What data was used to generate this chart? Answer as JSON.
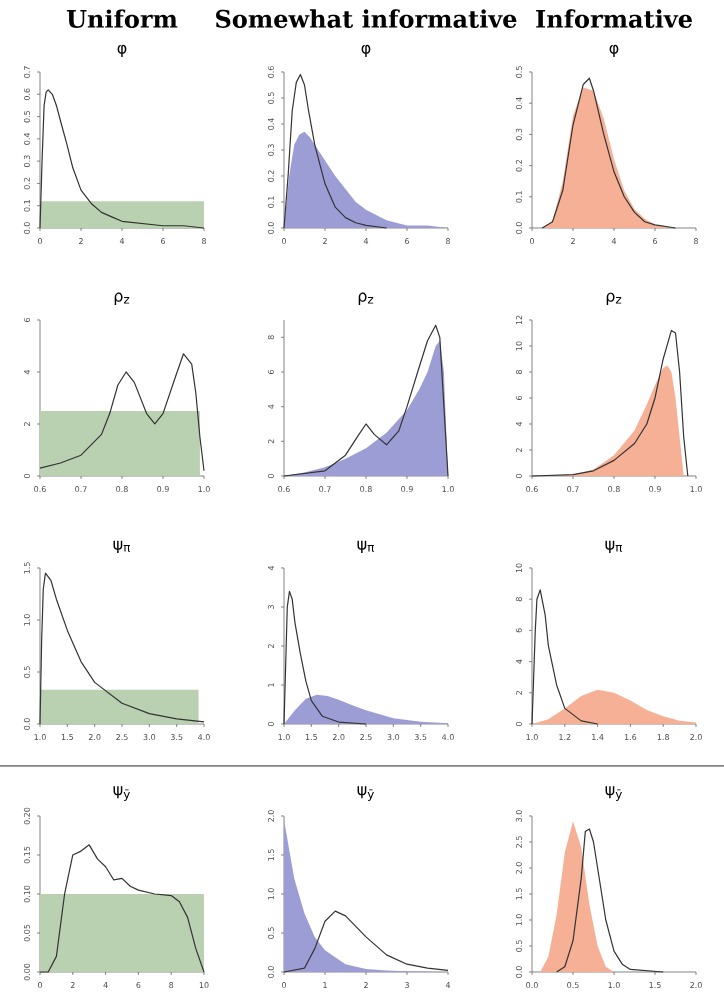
{
  "chart_data": [
    {
      "type": "area",
      "title": "Uniform",
      "subtitle": "φ",
      "xlim": [
        0,
        8
      ],
      "ylim": [
        0,
        0.7
      ],
      "xticks": [
        0,
        2,
        4,
        6,
        8
      ],
      "yticks": [
        {
          "value": 0,
          "label": "0.0"
        },
        0.1,
        0.2,
        0.3,
        0.4,
        0.5,
        0.6,
        0.7
      ],
      "series": [
        {
          "type": "area",
          "color": "#b9d0b1",
          "x": [
            0,
            1,
            2,
            3,
            4,
            5,
            6,
            7,
            8
          ],
          "values": [
            0.12,
            0.12,
            0.12,
            0.12,
            0.12,
            0.12,
            0.12,
            0.12,
            0.12
          ]
        },
        {
          "type": "line",
          "color": "#333333",
          "x": [
            0,
            0.1,
            0.2,
            0.3,
            0.4,
            0.6,
            0.8,
            1,
            1.3,
            1.6,
            2,
            2.5,
            3,
            3.5,
            4,
            5,
            6,
            7,
            8
          ],
          "values": [
            0,
            0.3,
            0.55,
            0.61,
            0.62,
            0.6,
            0.55,
            0.48,
            0.38,
            0.27,
            0.17,
            0.11,
            0.07,
            0.05,
            0.03,
            0.02,
            0.01,
            0.01,
            0
          ]
        }
      ]
    },
    {
      "type": "area",
      "title": "Somewhat informative",
      "subtitle": "φ",
      "xlim": [
        0,
        8
      ],
      "ylim": [
        0,
        0.6
      ],
      "xticks": [
        0,
        2,
        4,
        6,
        8
      ],
      "yticks": [
        {
          "value": 0,
          "label": "0.0"
        },
        0.1,
        0.2,
        0.3,
        0.4,
        0.5,
        0.6
      ],
      "series": [
        {
          "type": "area",
          "color": "#9d9dd6",
          "x": [
            0,
            0.25,
            0.5,
            0.75,
            1,
            1.25,
            1.5,
            2,
            2.5,
            3,
            3.5,
            4,
            5,
            6,
            7,
            8
          ],
          "values": [
            0,
            0.2,
            0.32,
            0.36,
            0.37,
            0.35,
            0.32,
            0.26,
            0.2,
            0.15,
            0.1,
            0.07,
            0.03,
            0.01,
            0.01,
            0
          ]
        },
        {
          "type": "line",
          "color": "#333333",
          "x": [
            0,
            0.2,
            0.4,
            0.6,
            0.8,
            1,
            1.2,
            1.5,
            2,
            2.5,
            3,
            3.5,
            4,
            5
          ],
          "values": [
            0,
            0.2,
            0.45,
            0.56,
            0.59,
            0.55,
            0.45,
            0.32,
            0.17,
            0.08,
            0.04,
            0.02,
            0.01,
            0
          ]
        }
      ]
    },
    {
      "type": "area",
      "title": "Informative",
      "subtitle": "φ",
      "xlim": [
        0,
        8
      ],
      "ylim": [
        0,
        0.5
      ],
      "xticks": [
        0,
        2,
        4,
        6,
        8
      ],
      "yticks": [
        {
          "value": 0,
          "label": "0.0"
        },
        0.1,
        0.2,
        0.3,
        0.4,
        0.5
      ],
      "series": [
        {
          "type": "area",
          "color": "#f6b096",
          "x": [
            0.5,
            1,
            1.5,
            2,
            2.5,
            3,
            3.5,
            4,
            4.5,
            5,
            5.5,
            6,
            7
          ],
          "values": [
            0,
            0.02,
            0.15,
            0.36,
            0.45,
            0.44,
            0.35,
            0.22,
            0.12,
            0.06,
            0.03,
            0.01,
            0
          ]
        },
        {
          "type": "line",
          "color": "#333333",
          "x": [
            0.5,
            1,
            1.5,
            2,
            2.5,
            2.8,
            3,
            3.5,
            4,
            4.5,
            5,
            5.5,
            6,
            7
          ],
          "values": [
            0,
            0.02,
            0.12,
            0.33,
            0.46,
            0.48,
            0.44,
            0.3,
            0.18,
            0.1,
            0.05,
            0.02,
            0.01,
            0
          ]
        }
      ]
    },
    {
      "type": "area",
      "title": "ρ$_{z}$",
      "xlim": [
        0.6,
        1.0
      ],
      "ylim": [
        0,
        6
      ],
      "xticks": [
        0.6,
        0.7,
        0.8,
        0.9,
        {
          "value": 1.0,
          "label": "1.0"
        }
      ],
      "yticks": [
        0,
        2,
        4,
        6
      ],
      "series": [
        {
          "type": "area",
          "color": "#b9d0b1",
          "x": [
            0.6,
            0.7,
            0.8,
            0.9,
            0.99
          ],
          "values": [
            2.5,
            2.5,
            2.5,
            2.5,
            2.5
          ]
        },
        {
          "type": "line",
          "color": "#333333",
          "x": [
            0.6,
            0.65,
            0.7,
            0.75,
            0.77,
            0.79,
            0.81,
            0.83,
            0.86,
            0.88,
            0.9,
            0.93,
            0.95,
            0.97,
            0.98,
            0.99,
            1.0
          ],
          "values": [
            0.3,
            0.5,
            0.8,
            1.6,
            2.4,
            3.5,
            4.0,
            3.6,
            2.4,
            2.0,
            2.4,
            3.8,
            4.7,
            4.3,
            3.2,
            1.5,
            0.2
          ]
        }
      ]
    },
    {
      "type": "area",
      "title": "ρ$_{z}$",
      "xlim": [
        0.6,
        1.0
      ],
      "ylim": [
        0,
        9
      ],
      "xticks": [
        0.6,
        0.7,
        0.8,
        0.9,
        {
          "value": 1.0,
          "label": "1.0"
        }
      ],
      "yticks": [
        0,
        2,
        4,
        6,
        8
      ],
      "series": [
        {
          "type": "area",
          "color": "#9d9dd6",
          "x": [
            0.6,
            0.65,
            0.7,
            0.75,
            0.8,
            0.85,
            0.9,
            0.93,
            0.95,
            0.97,
            0.98,
            0.99,
            1.0
          ],
          "values": [
            0,
            0.2,
            0.5,
            1.0,
            1.6,
            2.5,
            3.8,
            5,
            6,
            7.5,
            7.8,
            6,
            0
          ]
        },
        {
          "type": "line",
          "color": "#333333",
          "x": [
            0.6,
            0.7,
            0.75,
            0.78,
            0.8,
            0.82,
            0.85,
            0.88,
            0.9,
            0.93,
            0.95,
            0.97,
            0.98,
            0.99,
            1.0
          ],
          "values": [
            0,
            0.3,
            1.2,
            2.3,
            3.0,
            2.4,
            1.8,
            2.6,
            4.0,
            6.3,
            7.8,
            8.7,
            8,
            4,
            0
          ]
        }
      ]
    },
    {
      "type": "area",
      "title": "ρ$_{z}$",
      "xlim": [
        0.6,
        1.0
      ],
      "ylim": [
        0,
        12
      ],
      "xticks": [
        0.6,
        0.7,
        0.8,
        0.9,
        {
          "value": 1.0,
          "label": "1.0"
        }
      ],
      "yticks": [
        0,
        2,
        4,
        6,
        8,
        10,
        12
      ],
      "series": [
        {
          "type": "area",
          "color": "#f6b096",
          "x": [
            0.6,
            0.7,
            0.75,
            0.8,
            0.85,
            0.88,
            0.9,
            0.92,
            0.93,
            0.94,
            0.95,
            0.97
          ],
          "values": [
            0,
            0.1,
            0.5,
            1.6,
            3.5,
            5.5,
            7,
            8.3,
            8.5,
            8,
            6,
            0
          ]
        },
        {
          "type": "line",
          "color": "#333333",
          "x": [
            0.6,
            0.7,
            0.75,
            0.8,
            0.85,
            0.88,
            0.9,
            0.92,
            0.94,
            0.95,
            0.96,
            0.97,
            0.98
          ],
          "values": [
            0,
            0.1,
            0.4,
            1.2,
            2.5,
            4,
            6,
            9,
            11.2,
            11,
            8,
            3,
            0
          ]
        }
      ]
    },
    {
      "type": "area",
      "title": "ψ$_{π}$",
      "xlim": [
        1.0,
        4.0
      ],
      "ylim": [
        0,
        1.5
      ],
      "xticks": [
        {
          "value": 1.0,
          "label": "1.0"
        },
        1.5,
        {
          "value": 2.0,
          "label": "2.0"
        },
        2.5,
        {
          "value": 3.0,
          "label": "3.0"
        },
        3.5,
        {
          "value": 4.0,
          "label": "4.0"
        }
      ],
      "yticks": [
        {
          "value": 0,
          "label": "0.0"
        },
        0.5,
        {
          "value": 1.0,
          "label": "1.0"
        },
        1.5
      ],
      "series": [
        {
          "type": "area",
          "color": "#b9d0b1",
          "x": [
            1.0,
            2.0,
            3.0,
            3.9
          ],
          "values": [
            0.33,
            0.33,
            0.33,
            0.33
          ]
        },
        {
          "type": "line",
          "color": "#333333",
          "x": [
            1,
            1.03,
            1.06,
            1.1,
            1.2,
            1.3,
            1.5,
            1.75,
            2,
            2.5,
            3,
            3.5,
            4
          ],
          "values": [
            0,
            0.8,
            1.3,
            1.45,
            1.38,
            1.2,
            0.9,
            0.6,
            0.4,
            0.2,
            0.1,
            0.05,
            0.02
          ]
        }
      ]
    },
    {
      "type": "area",
      "title": "ψ$_{π}$",
      "xlim": [
        1.0,
        4.0
      ],
      "ylim": [
        0,
        4
      ],
      "xticks": [
        {
          "value": 1.0,
          "label": "1.0"
        },
        1.5,
        {
          "value": 2.0,
          "label": "2.0"
        },
        2.5,
        {
          "value": 3.0,
          "label": "3.0"
        },
        3.5,
        {
          "value": 4.0,
          "label": "4.0"
        }
      ],
      "yticks": [
        0,
        1,
        2,
        3,
        4
      ],
      "series": [
        {
          "type": "area",
          "color": "#9d9dd6",
          "x": [
            1,
            1.2,
            1.4,
            1.6,
            1.8,
            2,
            2.25,
            2.5,
            3,
            3.5,
            4
          ],
          "values": [
            0,
            0.35,
            0.65,
            0.75,
            0.72,
            0.62,
            0.48,
            0.35,
            0.15,
            0.06,
            0.02
          ]
        },
        {
          "type": "line",
          "color": "#333333",
          "x": [
            1,
            1.03,
            1.06,
            1.1,
            1.15,
            1.2,
            1.3,
            1.4,
            1.5,
            1.7,
            2,
            2.5
          ],
          "values": [
            0,
            1.5,
            3.0,
            3.4,
            3.2,
            2.6,
            1.8,
            1.1,
            0.6,
            0.2,
            0.05,
            0
          ]
        }
      ]
    },
    {
      "type": "area",
      "title": "ψ$_{π}$",
      "xlim": [
        1.0,
        2.0
      ],
      "ylim": [
        0,
        10
      ],
      "xticks": [
        {
          "value": 1.0,
          "label": "1.0"
        },
        1.2,
        1.4,
        1.6,
        1.8,
        {
          "value": 2.0,
          "label": "2.0"
        }
      ],
      "yticks": [
        0,
        2,
        4,
        6,
        8,
        10
      ],
      "series": [
        {
          "type": "area",
          "color": "#f6b096",
          "x": [
            1,
            1.1,
            1.2,
            1.3,
            1.4,
            1.5,
            1.6,
            1.7,
            1.8,
            1.9,
            2.0
          ],
          "values": [
            0,
            0.3,
            1.0,
            1.8,
            2.2,
            2.0,
            1.5,
            0.9,
            0.5,
            0.2,
            0.1
          ]
        },
        {
          "type": "line",
          "color": "#333333",
          "x": [
            1,
            1.01,
            1.02,
            1.03,
            1.05,
            1.08,
            1.1,
            1.15,
            1.2,
            1.3,
            1.4
          ],
          "values": [
            0,
            3,
            6,
            8,
            8.6,
            7,
            5,
            2.5,
            1,
            0.2,
            0
          ]
        }
      ]
    },
    {
      "type": "area",
      "title": "ψ$_{ȳ}$",
      "xlim": [
        0,
        10
      ],
      "ylim": [
        0,
        0.2
      ],
      "xticks": [
        0,
        2,
        4,
        6,
        8,
        10
      ],
      "yticks": [
        {
          "value": 0,
          "label": "0.00"
        },
        0.05,
        {
          "value": 0.1,
          "label": "0.10"
        },
        0.15,
        {
          "value": 0.2,
          "label": "0.20"
        }
      ],
      "series": [
        {
          "type": "area",
          "color": "#b9d0b1",
          "x": [
            0,
            2,
            4,
            6,
            8,
            10
          ],
          "values": [
            0.1,
            0.1,
            0.1,
            0.1,
            0.1,
            0.1
          ]
        },
        {
          "type": "line",
          "color": "#333333",
          "x": [
            0,
            0.5,
            1,
            1.5,
            2,
            2.5,
            3,
            3.5,
            4,
            4.5,
            5,
            5.5,
            6,
            7,
            8,
            8.5,
            9,
            9.5,
            10
          ],
          "values": [
            0,
            0,
            0.02,
            0.1,
            0.15,
            0.155,
            0.163,
            0.145,
            0.135,
            0.118,
            0.12,
            0.11,
            0.105,
            0.1,
            0.098,
            0.09,
            0.07,
            0.03,
            0
          ]
        }
      ]
    },
    {
      "type": "area",
      "title": "ψ$_{ȳ}$",
      "xlim": [
        0,
        4
      ],
      "ylim": [
        0,
        2.0
      ],
      "xticks": [
        0,
        1,
        2,
        3,
        4
      ],
      "yticks": [
        {
          "value": 0,
          "label": "0.0"
        },
        0.5,
        {
          "value": 1.0,
          "label": "1.0"
        },
        1.5,
        {
          "value": 2.0,
          "label": "2.0"
        }
      ],
      "series": [
        {
          "type": "area",
          "color": "#9d9dd6",
          "x": [
            0,
            0.25,
            0.5,
            0.75,
            1,
            1.5,
            2,
            2.5,
            3,
            4
          ],
          "values": [
            1.95,
            1.2,
            0.75,
            0.45,
            0.28,
            0.1,
            0.04,
            0.02,
            0.01,
            0
          ]
        },
        {
          "type": "line",
          "color": "#333333",
          "x": [
            0,
            0.5,
            0.75,
            1,
            1.25,
            1.5,
            2,
            2.5,
            3,
            3.5,
            4
          ],
          "values": [
            0,
            0.05,
            0.3,
            0.65,
            0.78,
            0.72,
            0.45,
            0.22,
            0.1,
            0.05,
            0.02
          ]
        }
      ]
    },
    {
      "type": "area",
      "title": "ψ$_{ȳ}$",
      "xlim": [
        0,
        2.0
      ],
      "ylim": [
        0,
        3.0
      ],
      "xticks": [
        {
          "value": 0,
          "label": "0.0"
        },
        0.5,
        {
          "value": 1.0,
          "label": "1.0"
        },
        1.5,
        {
          "value": 2.0,
          "label": "2.0"
        }
      ],
      "yticks": [
        {
          "value": 0,
          "label": "0.0"
        },
        0.5,
        {
          "value": 1.0,
          "label": "1.0"
        },
        1.5,
        {
          "value": 2.0,
          "label": "2.0"
        },
        2.5,
        {
          "value": 3.0,
          "label": "3.0"
        }
      ],
      "series": [
        {
          "type": "area",
          "color": "#f6b096",
          "x": [
            0.1,
            0.2,
            0.3,
            0.4,
            0.5,
            0.6,
            0.7,
            0.8,
            0.9,
            1.0
          ],
          "values": [
            0,
            0.3,
            1.1,
            2.3,
            2.9,
            2.4,
            1.3,
            0.5,
            0.1,
            0
          ]
        },
        {
          "type": "line",
          "color": "#333333",
          "x": [
            0.3,
            0.4,
            0.5,
            0.6,
            0.65,
            0.7,
            0.75,
            0.8,
            0.9,
            1.0,
            1.1,
            1.2,
            1.6
          ],
          "values": [
            0,
            0.1,
            0.6,
            1.8,
            2.7,
            2.75,
            2.5,
            2.0,
            1.0,
            0.4,
            0.15,
            0.05,
            0
          ]
        }
      ]
    }
  ]
}
